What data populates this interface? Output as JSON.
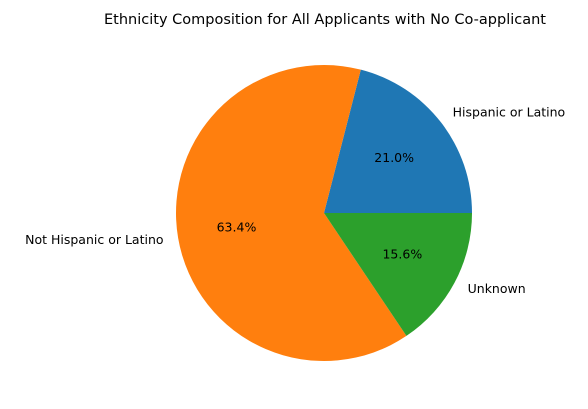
{
  "chart_data": {
    "type": "pie",
    "title": "Ethnicity Composition for All Applicants with No Co-applicant",
    "start_angle_deg": 0,
    "direction": "counterclockwise",
    "slices": [
      {
        "label": "Hispanic or Latino",
        "value": 21.0,
        "pct_label": "21.0%",
        "color": "#1f77b4"
      },
      {
        "label": "Not Hispanic or Latino",
        "value": 63.4,
        "pct_label": "63.4%",
        "color": "#ff7f0e"
      },
      {
        "label": "Unknown",
        "value": 15.6,
        "pct_label": "15.6%",
        "color": "#2ca02c"
      }
    ]
  }
}
